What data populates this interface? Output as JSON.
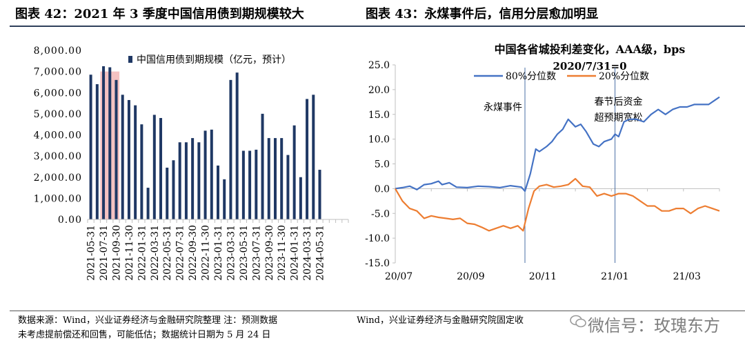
{
  "titles": {
    "left": "图表 42：2021 年 3 季度中国信用债到期规模较大",
    "right": "图表 43：永煤事件后，信用分层愈加明显"
  },
  "footer": {
    "left_line1": "数据来源：Wind，兴业证券经济与金融研究院整理  注：预测数据",
    "left_line2": "未考虑提前偿还和回售，可能低估；数据统计日期为 5 月 24 日",
    "right": "Wind，兴业证券经济与金融研究院固定收",
    "watermark": "微信号：玫瑰东方",
    "watermark_icon": "wechat-icon"
  },
  "colors": {
    "bar": "#1f3864",
    "highlight": "#f4c2c2",
    "line80": "#4472c4",
    "line20": "#ed7d31",
    "vline": "#4a6fa5"
  },
  "chart_data": [
    {
      "type": "bar",
      "title": "",
      "legend": "中国信用债到期规模（亿元，预计）",
      "legend_position": "top-right",
      "ylim": [
        0,
        8000
      ],
      "yticks": [
        "8,000.00",
        "7,000.00",
        "6,000.00",
        "5,000.00",
        "4,000.00",
        "3,000.00",
        "2,000.00",
        "1,000.00",
        "0.00"
      ],
      "ytick_values": [
        8000,
        7000,
        6000,
        5000,
        4000,
        3000,
        2000,
        1000,
        0
      ],
      "xtick_labels": [
        "2021-05-31",
        "2021-07-31",
        "2021-09-30",
        "2021-11-30",
        "2022-01-31",
        "2022-03-31",
        "2022-05-31",
        "2022-07-31",
        "2022-09-30",
        "2022-11-30",
        "2023-01-31",
        "2023-03-31",
        "2023-05-31",
        "2023-07-31",
        "2023-09-30",
        "2023-11-30",
        "2024-01-31",
        "2024-03-31",
        "2024-05-31"
      ],
      "months": [
        "2021-05",
        "2021-06",
        "2021-07",
        "2021-08",
        "2021-09",
        "2021-10",
        "2021-11",
        "2021-12",
        "2022-01",
        "2022-02",
        "2022-03",
        "2022-04",
        "2022-05",
        "2022-06",
        "2022-07",
        "2022-08",
        "2022-09",
        "2022-10",
        "2022-11",
        "2022-12",
        "2023-01",
        "2023-02",
        "2023-03",
        "2023-04",
        "2023-05",
        "2023-06",
        "2023-07",
        "2023-08",
        "2023-09",
        "2023-10",
        "2023-11",
        "2023-12",
        "2024-01",
        "2024-02",
        "2024-03",
        "2024-04",
        "2024-05",
        "2024-06",
        "2024-07",
        "2024-08",
        "2024-09"
      ],
      "values": [
        6850,
        6400,
        7250,
        7200,
        6600,
        5900,
        5650,
        5400,
        4500,
        1500,
        4950,
        4800,
        2450,
        2800,
        3650,
        3650,
        3850,
        3650,
        4200,
        4250,
        2550,
        1900,
        6600,
        6950,
        3250,
        3250,
        3300,
        5000,
        3850,
        3850,
        3850,
        3050,
        4450,
        2000,
        5700,
        5900,
        2350,
        0,
        0,
        0,
        0
      ],
      "highlight_months": [
        "2021-07",
        "2021-08",
        "2021-09"
      ]
    },
    {
      "type": "line",
      "title": "中国各省城投利差变化，AAA级，bps",
      "subtitle": "2020/7/31=0",
      "xlabel": "",
      "ylabel": "",
      "ylim": [
        -15,
        25
      ],
      "yticks": [
        "25.0",
        "20.0",
        "15.0",
        "10.0",
        "5.0",
        "0.0",
        "-5.0",
        "-10.0",
        "-15.0"
      ],
      "ytick_values": [
        25,
        20,
        15,
        10,
        5,
        0,
        -5,
        -10,
        -15
      ],
      "xtick_labels": [
        "20/07",
        "20/09",
        "20/11",
        "21/01",
        "21/03"
      ],
      "xtick_positions": [
        0,
        2,
        4,
        6,
        8
      ],
      "xlim": [
        0,
        9
      ],
      "grid": false,
      "annotations": [
        {
          "x": 3.6,
          "label_lines": [
            "永煤事件"
          ]
        },
        {
          "x": 6.1,
          "label_lines": [
            "春节后资金",
            "超预期宽松"
          ]
        }
      ],
      "series": [
        {
          "name": "80%分位数",
          "x": [
            0,
            0.2,
            0.4,
            0.6,
            0.8,
            1.0,
            1.2,
            1.3,
            1.5,
            1.7,
            2.0,
            2.3,
            2.6,
            2.9,
            3.2,
            3.5,
            3.6,
            3.75,
            3.9,
            4.0,
            4.2,
            4.35,
            4.5,
            4.65,
            4.8,
            5.0,
            5.15,
            5.3,
            5.5,
            5.65,
            5.8,
            6.0,
            6.1,
            6.2,
            6.35,
            6.5,
            6.7,
            6.9,
            7.1,
            7.3,
            7.5,
            7.7,
            7.9,
            8.1,
            8.3,
            8.5,
            8.7,
            8.9,
            9.0
          ],
          "values": [
            0,
            0.2,
            0.5,
            -0.2,
            0.8,
            1.0,
            1.5,
            0.8,
            1.2,
            0.3,
            0.2,
            0.5,
            0.4,
            0.2,
            0.6,
            0.3,
            -0.5,
            3,
            8,
            7.5,
            8.5,
            9.5,
            11,
            12,
            14,
            12.5,
            13,
            11.5,
            9,
            8.5,
            9.5,
            10,
            11,
            10.5,
            13.5,
            14,
            14,
            13.5,
            15,
            16,
            15,
            16,
            16.5,
            16.5,
            17,
            17,
            17,
            18,
            18.5
          ]
        },
        {
          "name": "20%分位数",
          "x": [
            0,
            0.2,
            0.4,
            0.6,
            0.8,
            1.0,
            1.2,
            1.4,
            1.6,
            1.8,
            2.0,
            2.2,
            2.4,
            2.6,
            2.8,
            3.0,
            3.2,
            3.4,
            3.55,
            3.7,
            3.85,
            4.0,
            4.2,
            4.4,
            4.6,
            4.8,
            5.0,
            5.2,
            5.4,
            5.6,
            5.8,
            6.0,
            6.2,
            6.4,
            6.6,
            6.8,
            7.0,
            7.2,
            7.4,
            7.6,
            7.8,
            8.0,
            8.2,
            8.4,
            8.6,
            8.8,
            9.0
          ],
          "values": [
            0,
            -2.5,
            -4,
            -4.5,
            -6,
            -5.5,
            -5.8,
            -6,
            -6.2,
            -6,
            -7,
            -7.2,
            -7.8,
            -8.5,
            -8,
            -7.5,
            -8,
            -7.5,
            -8.5,
            -4,
            -0.5,
            0.5,
            0.8,
            0.3,
            0.5,
            0.8,
            2.0,
            0.5,
            0.3,
            -1.5,
            -1.0,
            -1.5,
            -1.0,
            -1.0,
            -1.5,
            -2.5,
            -3.5,
            -3.5,
            -4.5,
            -4.5,
            -4.0,
            -4.0,
            -5.0,
            -4.0,
            -3.5,
            -4.0,
            -4.5
          ]
        }
      ]
    }
  ]
}
